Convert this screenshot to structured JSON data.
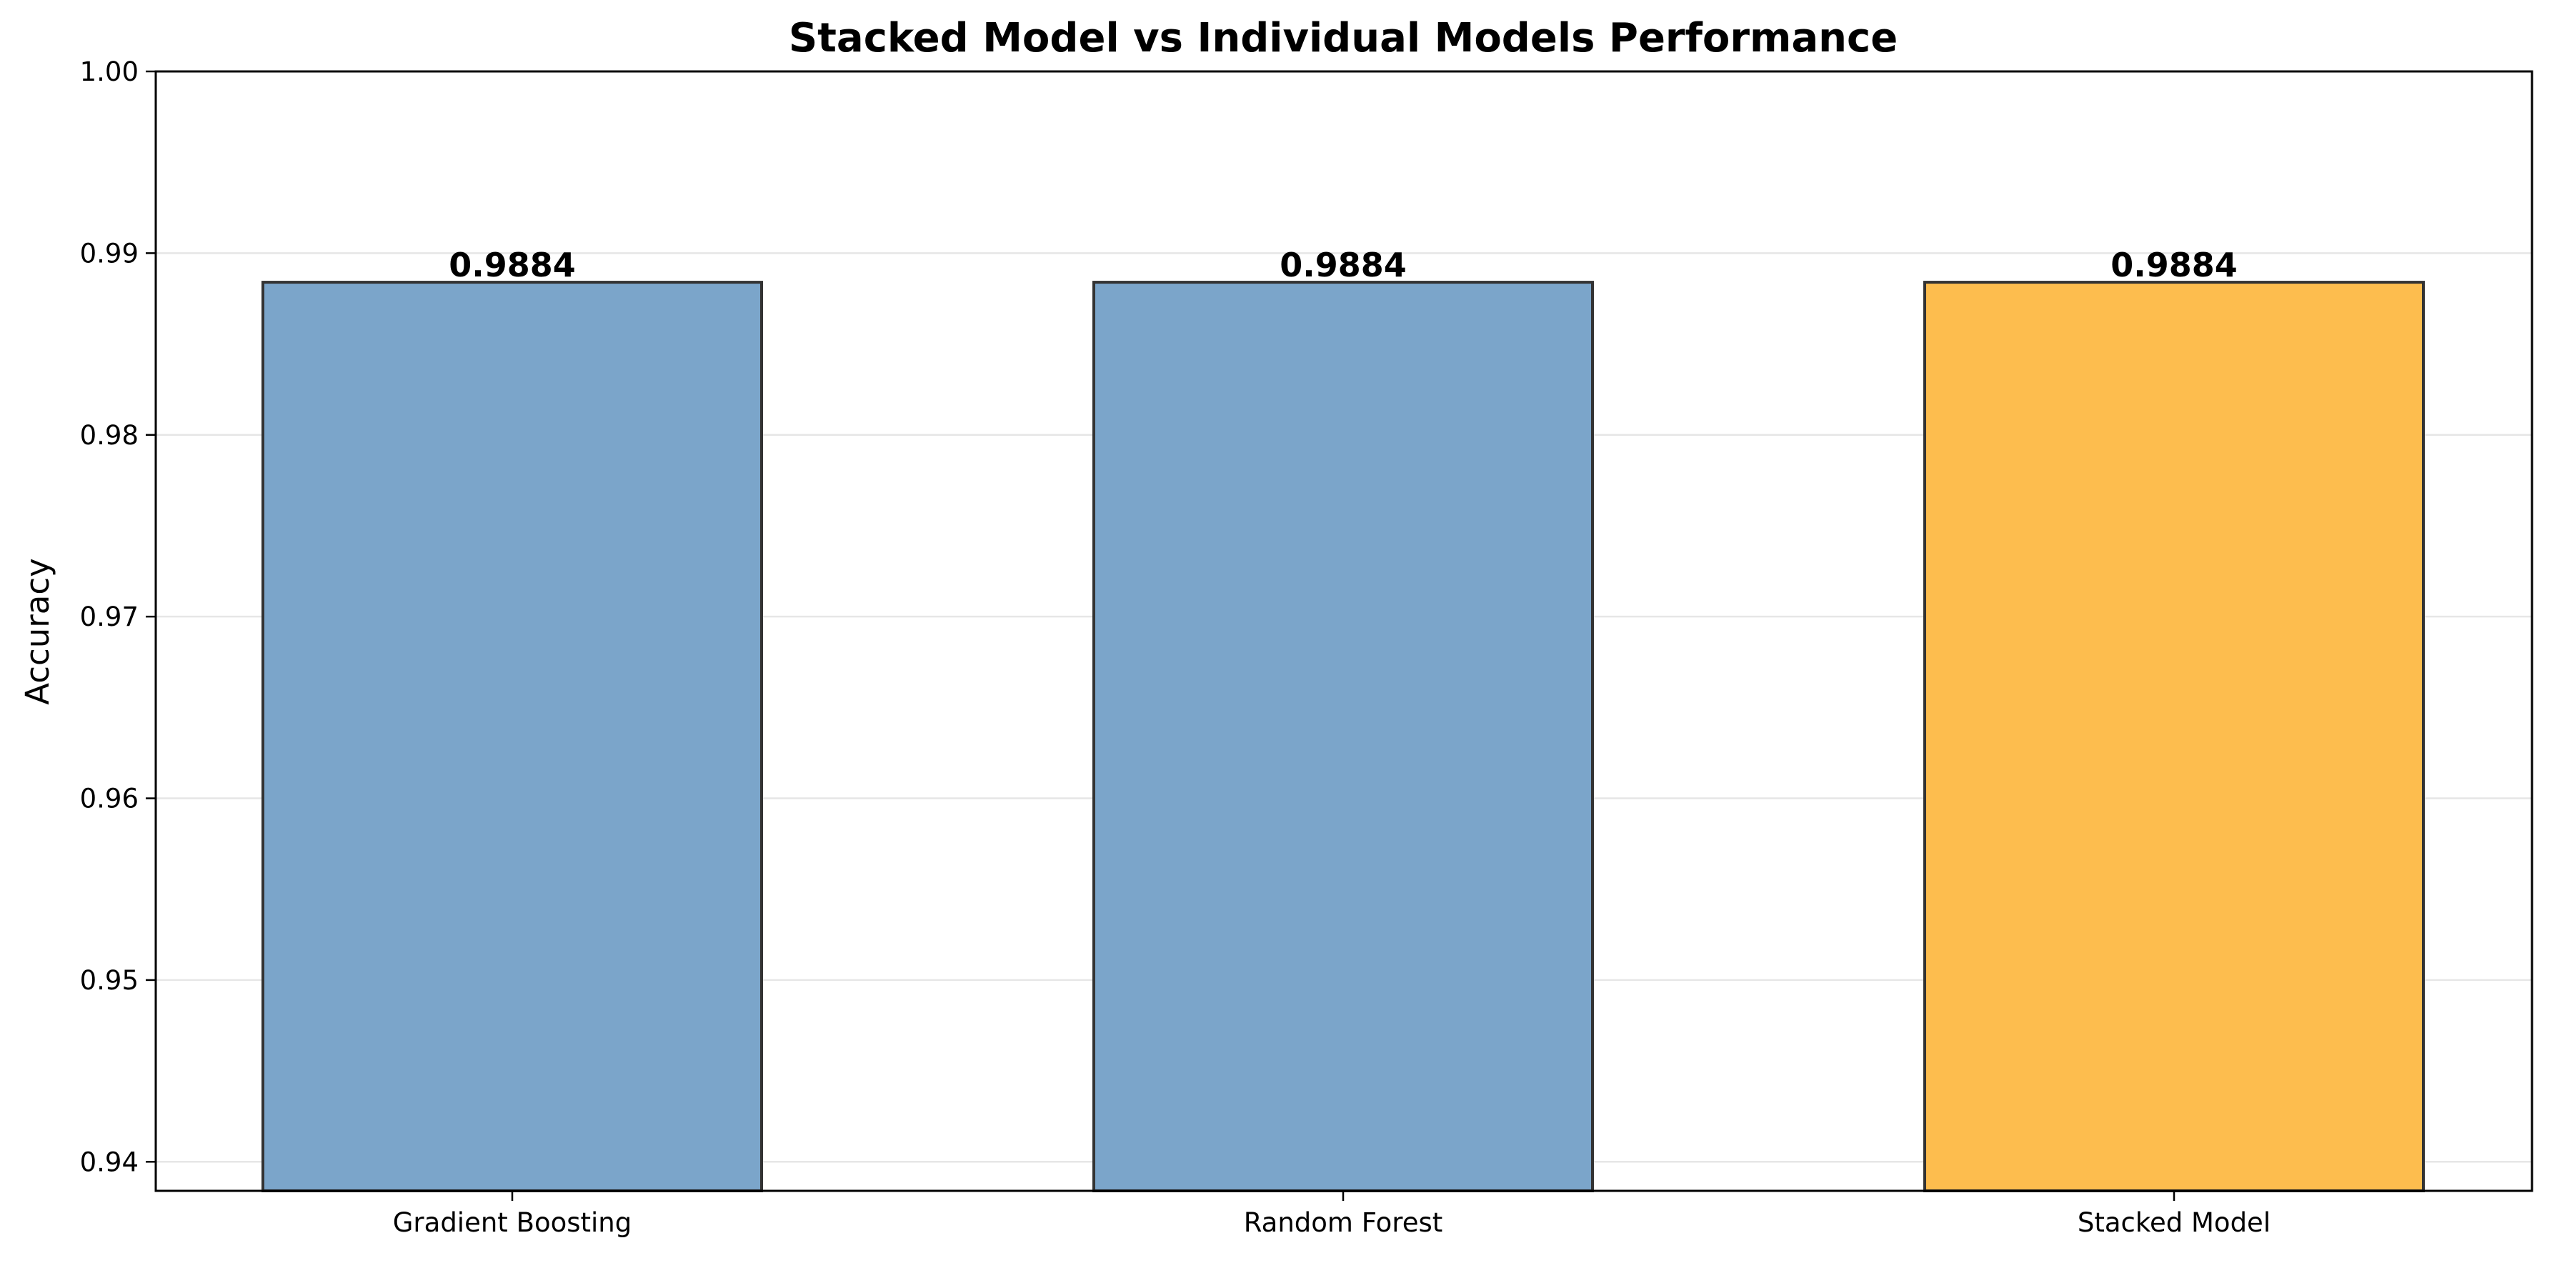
{
  "chart_data": {
    "type": "bar",
    "title": "Stacked Model vs Individual Models Performance",
    "xlabel": "",
    "ylabel": "Accuracy",
    "categories": [
      "Gradient Boosting",
      "Random Forest",
      "Stacked Model"
    ],
    "values": [
      0.9884,
      0.9884,
      0.9884
    ],
    "value_labels": [
      "0.9884",
      "0.9884",
      "0.9884"
    ],
    "bar_colors": [
      "#7BA5CA",
      "#7BA5CA",
      "#FDBD4E"
    ],
    "edge_color": "#333333",
    "ylim": [
      0.9384,
      1.0
    ],
    "yticks": [
      0.94,
      0.95,
      0.96,
      0.97,
      0.98,
      0.99,
      1.0
    ],
    "ytick_labels": [
      "0.94",
      "0.95",
      "0.96",
      "0.97",
      "0.98",
      "0.99",
      "1.00"
    ],
    "grid": "y",
    "legend": "none"
  }
}
